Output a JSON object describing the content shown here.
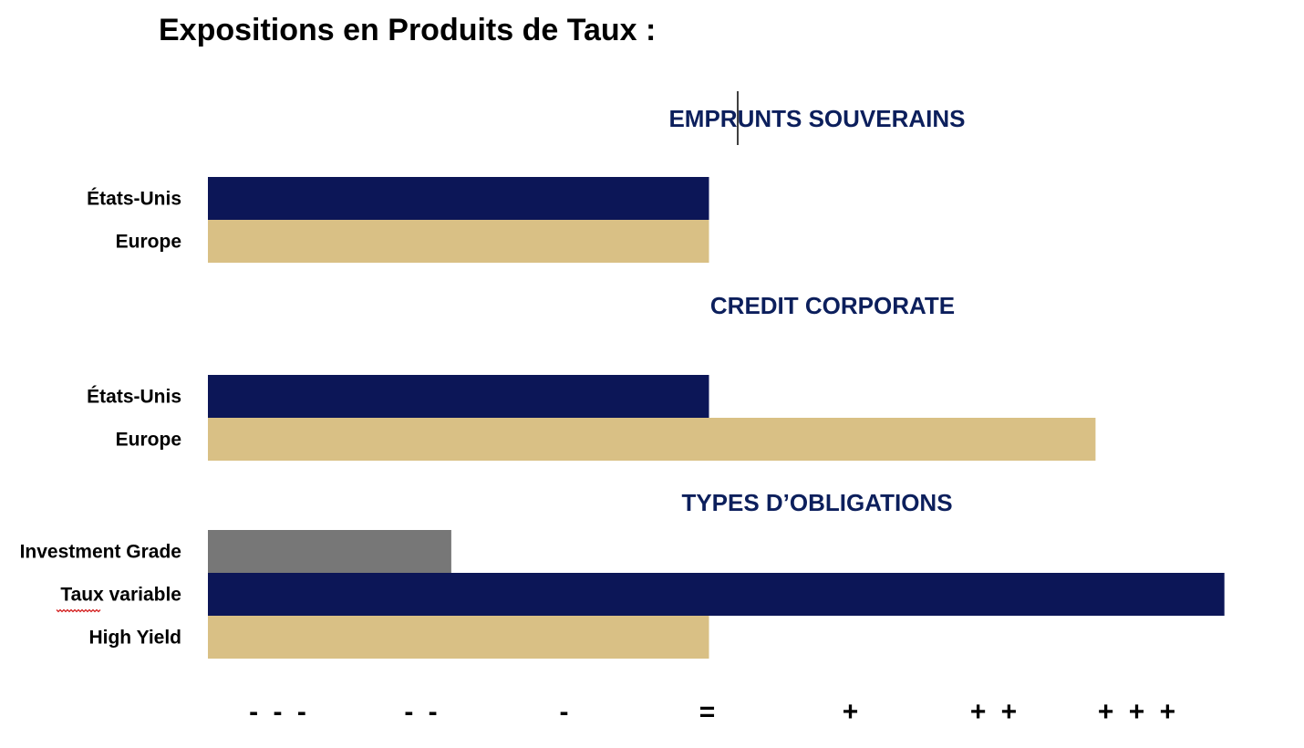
{
  "title": "Expositions en Produits de Taux :",
  "colors": {
    "navy": "#0c1657",
    "gold": "#d9c085",
    "gray": "#777777",
    "section_title": "#0c1f5c",
    "spellcheck_underline": "#d42020"
  },
  "chart_data": {
    "type": "bar",
    "orientation": "horizontal",
    "grid": false,
    "legend": "none",
    "x_ticks": [
      "- - -",
      "- -",
      "-",
      "=",
      "+",
      "+ +",
      "+ + +"
    ],
    "x_range": [
      -3.5,
      3.5
    ],
    "groups": [
      {
        "title": "EMPRUNTS SOUVERAINS",
        "bars": [
          {
            "label": "États-Unis",
            "value": 0,
            "color": "navy"
          },
          {
            "label": "Europe",
            "value": 0,
            "color": "gold"
          }
        ]
      },
      {
        "title": "CREDIT CORPORATE",
        "bars": [
          {
            "label": "États-Unis",
            "value": 0,
            "color": "navy"
          },
          {
            "label": "Europe",
            "value": 2.7,
            "color": "gold"
          }
        ]
      },
      {
        "title": "TYPES D’OBLIGATIONS",
        "bars": [
          {
            "label": "Investment Grade",
            "value": -1.8,
            "color": "gray"
          },
          {
            "label": "Taux variable",
            "value": 3.6,
            "color": "navy"
          },
          {
            "label": "High Yield",
            "value": 0,
            "color": "gold"
          }
        ]
      }
    ]
  }
}
